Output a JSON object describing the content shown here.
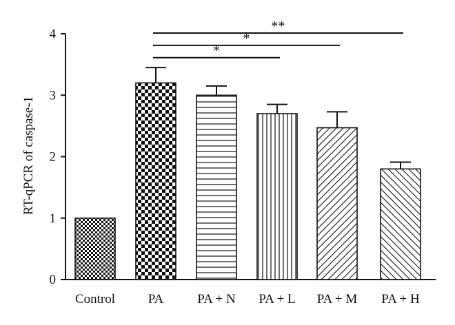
{
  "chart_data": {
    "type": "bar",
    "ylabel": "RT-qPCR of caspase-1",
    "ylim": [
      0,
      4
    ],
    "yticks": [
      "0",
      "1",
      "2",
      "3",
      "4"
    ],
    "grid": false,
    "categories": [
      "Control",
      "PA",
      "PA + N",
      "PA + L",
      "PA + M",
      "PA + H"
    ],
    "values": [
      1.0,
      3.2,
      3.0,
      2.7,
      2.47,
      1.8
    ],
    "errors": [
      0,
      0.25,
      0.15,
      0.15,
      0.26,
      0.11
    ],
    "patterns": [
      "small-checker",
      "large-checker",
      "horizontal-lines",
      "vertical-lines",
      "diagonal-lines",
      "diagonal-lines-dense"
    ],
    "significance": [
      {
        "from": "PA",
        "to": "PA + L",
        "label": "*",
        "y": 3.6
      },
      {
        "from": "PA",
        "to": "PA + M",
        "label": "*",
        "y": 3.8
      },
      {
        "from": "PA",
        "to": "PA + H",
        "label": "**",
        "y": 4.0
      }
    ]
  }
}
